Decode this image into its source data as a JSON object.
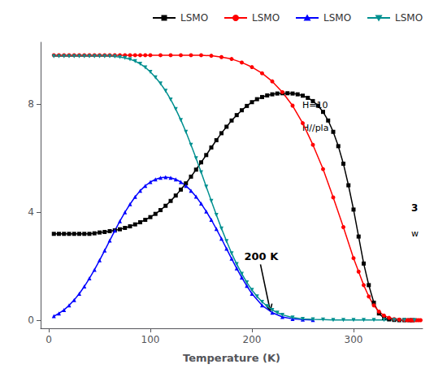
{
  "chart_data": {
    "type": "line",
    "xlabel": "Temperature (K)",
    "xlim": [
      -8,
      368
    ],
    "ylim": [
      -0.3,
      10.3
    ],
    "xticks": [
      0,
      100,
      200,
      300
    ],
    "yticks": [
      0,
      4,
      8
    ],
    "grid": false,
    "legend": "upper right",
    "annotations": [
      {
        "text": "200 K",
        "x": 218,
        "y": 0.35
      },
      {
        "text": "H=10"
      },
      {
        "text": "H//pla"
      },
      {
        "text": "3"
      },
      {
        "text": "w"
      }
    ],
    "series": [
      {
        "name": "LSMO",
        "color": "black",
        "marker": "square",
        "x": [
          5,
          10,
          15,
          20,
          25,
          30,
          35,
          40,
          45,
          50,
          55,
          60,
          65,
          70,
          75,
          80,
          85,
          90,
          95,
          100,
          105,
          110,
          115,
          120,
          125,
          130,
          135,
          140,
          145,
          150,
          155,
          160,
          165,
          170,
          175,
          180,
          185,
          190,
          195,
          200,
          205,
          210,
          215,
          220,
          225,
          230,
          235,
          240,
          245,
          250,
          255,
          260,
          265,
          270,
          275,
          280,
          285,
          290,
          295,
          300,
          305,
          310,
          315,
          320,
          325,
          330,
          335,
          340,
          345,
          350,
          355,
          358
        ],
        "values": [
          3.2,
          3.2,
          3.2,
          3.2,
          3.2,
          3.2,
          3.2,
          3.2,
          3.22,
          3.25,
          3.27,
          3.3,
          3.33,
          3.37,
          3.42,
          3.48,
          3.55,
          3.63,
          3.72,
          3.82,
          3.94,
          4.08,
          4.24,
          4.42,
          4.62,
          4.84,
          5.07,
          5.32,
          5.58,
          5.85,
          6.12,
          6.4,
          6.67,
          6.93,
          7.17,
          7.4,
          7.6,
          7.78,
          7.94,
          8.08,
          8.19,
          8.27,
          8.33,
          8.37,
          8.4,
          8.41,
          8.41,
          8.4,
          8.37,
          8.32,
          8.24,
          8.12,
          7.95,
          7.72,
          7.4,
          6.98,
          6.45,
          5.8,
          5.0,
          4.1,
          3.1,
          2.1,
          1.3,
          0.65,
          0.25,
          0.08,
          0.03,
          0.01,
          0.0,
          0.0,
          0.0,
          0.0
        ]
      },
      {
        "name": "LSMO",
        "color": "red",
        "marker": "circle",
        "x": [
          5,
          10,
          15,
          20,
          25,
          30,
          35,
          40,
          45,
          50,
          55,
          60,
          65,
          70,
          75,
          80,
          85,
          90,
          95,
          100,
          110,
          120,
          130,
          140,
          150,
          160,
          170,
          180,
          190,
          200,
          210,
          220,
          230,
          240,
          250,
          260,
          270,
          280,
          290,
          300,
          305,
          310,
          315,
          320,
          325,
          330,
          335,
          340,
          345,
          350,
          353,
          356,
          358,
          360,
          362,
          364,
          366
        ],
        "values": [
          9.82,
          9.82,
          9.82,
          9.82,
          9.82,
          9.82,
          9.82,
          9.82,
          9.82,
          9.82,
          9.82,
          9.82,
          9.82,
          9.82,
          9.82,
          9.82,
          9.82,
          9.82,
          9.82,
          9.82,
          9.82,
          9.82,
          9.82,
          9.82,
          9.82,
          9.8,
          9.75,
          9.68,
          9.55,
          9.38,
          9.15,
          8.85,
          8.45,
          7.95,
          7.3,
          6.5,
          5.6,
          4.55,
          3.45,
          2.3,
          1.8,
          1.3,
          0.88,
          0.55,
          0.32,
          0.17,
          0.09,
          0.04,
          0.02,
          0.01,
          0.0,
          0.0,
          0.0,
          0.0,
          0.0,
          0.0,
          0.0
        ]
      },
      {
        "name": "LSMO",
        "color": "blue",
        "marker": "triangle-up",
        "x": [
          5,
          10,
          15,
          20,
          25,
          30,
          35,
          40,
          45,
          50,
          55,
          60,
          65,
          70,
          75,
          80,
          85,
          90,
          95,
          100,
          105,
          110,
          115,
          120,
          125,
          130,
          135,
          140,
          145,
          150,
          155,
          160,
          165,
          170,
          175,
          180,
          185,
          190,
          195,
          200,
          210,
          220,
          230,
          240,
          250,
          260
        ],
        "values": [
          0.15,
          0.25,
          0.38,
          0.55,
          0.75,
          0.98,
          1.25,
          1.55,
          1.87,
          2.22,
          2.58,
          2.95,
          3.32,
          3.67,
          4.0,
          4.3,
          4.57,
          4.8,
          4.98,
          5.12,
          5.22,
          5.28,
          5.3,
          5.28,
          5.22,
          5.12,
          4.98,
          4.8,
          4.58,
          4.32,
          4.03,
          3.72,
          3.38,
          3.02,
          2.65,
          2.28,
          1.92,
          1.58,
          1.27,
          0.98,
          0.55,
          0.28,
          0.12,
          0.05,
          0.02,
          0.01
        ]
      },
      {
        "name": "LSMO",
        "color": "#009090",
        "marker": "triangle-down",
        "x": [
          5,
          10,
          15,
          20,
          25,
          30,
          35,
          40,
          45,
          50,
          55,
          60,
          65,
          70,
          75,
          80,
          85,
          90,
          95,
          100,
          105,
          110,
          115,
          120,
          125,
          130,
          135,
          140,
          145,
          150,
          155,
          160,
          165,
          170,
          175,
          180,
          185,
          190,
          195,
          200,
          205,
          210,
          215,
          220,
          225,
          230,
          240,
          250,
          260,
          270,
          280,
          290,
          300,
          310,
          320,
          330,
          340,
          350,
          360
        ],
        "values": [
          9.78,
          9.78,
          9.78,
          9.78,
          9.78,
          9.78,
          9.78,
          9.78,
          9.78,
          9.78,
          9.78,
          9.78,
          9.77,
          9.75,
          9.72,
          9.67,
          9.6,
          9.5,
          9.37,
          9.2,
          9.0,
          8.77,
          8.5,
          8.18,
          7.82,
          7.42,
          6.98,
          6.5,
          6.0,
          5.48,
          4.95,
          4.42,
          3.9,
          3.4,
          2.93,
          2.48,
          2.08,
          1.72,
          1.4,
          1.12,
          0.88,
          0.68,
          0.52,
          0.38,
          0.28,
          0.2,
          0.1,
          0.05,
          0.03,
          0.02,
          0.01,
          0.01,
          0.01,
          0.01,
          0.01,
          0.01,
          0.01,
          0.01,
          0.0
        ]
      }
    ]
  }
}
